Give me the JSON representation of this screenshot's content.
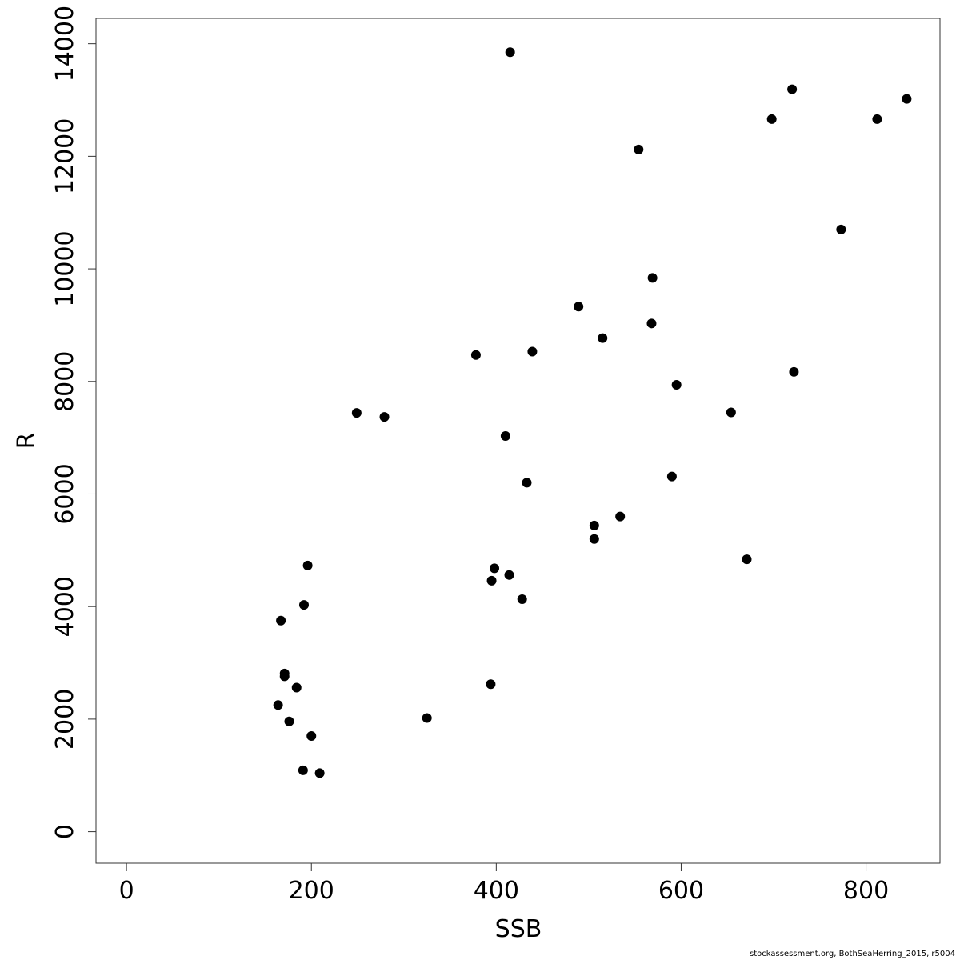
{
  "chart_data": {
    "type": "scatter",
    "xlabel": "SSB",
    "ylabel": "R",
    "xlim": [
      -33,
      880
    ],
    "ylim": [
      -560,
      14450
    ],
    "xticks": [
      0,
      200,
      400,
      600,
      800
    ],
    "yticks": [
      0,
      2000,
      4000,
      6000,
      8000,
      10000,
      12000,
      14000
    ],
    "grid": false,
    "series": [
      {
        "points": [
          [
            415,
            13850
          ],
          [
            720,
            13190
          ],
          [
            844,
            13020
          ],
          [
            698,
            12660
          ],
          [
            812,
            12660
          ],
          [
            554,
            12120
          ],
          [
            773,
            10700
          ],
          [
            569,
            9840
          ],
          [
            489,
            9330
          ],
          [
            568,
            9030
          ],
          [
            515,
            8770
          ],
          [
            378,
            8470
          ],
          [
            439,
            8530
          ],
          [
            722,
            8170
          ],
          [
            595,
            7940
          ],
          [
            249,
            7440
          ],
          [
            279,
            7370
          ],
          [
            654,
            7450
          ],
          [
            410,
            7030
          ],
          [
            433,
            6200
          ],
          [
            590,
            6310
          ],
          [
            534,
            5600
          ],
          [
            506,
            5440
          ],
          [
            506,
            5200
          ],
          [
            671,
            4840
          ],
          [
            196,
            4730
          ],
          [
            398,
            4680
          ],
          [
            414,
            4560
          ],
          [
            395,
            4460
          ],
          [
            428,
            4130
          ],
          [
            192,
            4030
          ],
          [
            167,
            3750
          ],
          [
            171,
            2810
          ],
          [
            171,
            2760
          ],
          [
            184,
            2560
          ],
          [
            394,
            2620
          ],
          [
            164,
            2250
          ],
          [
            176,
            1960
          ],
          [
            325,
            2020
          ],
          [
            200,
            1700
          ],
          [
            191,
            1090
          ],
          [
            209,
            1040
          ]
        ]
      }
    ]
  },
  "footer": "stockassessment.org, BothSeaHerring_2015, r5004"
}
